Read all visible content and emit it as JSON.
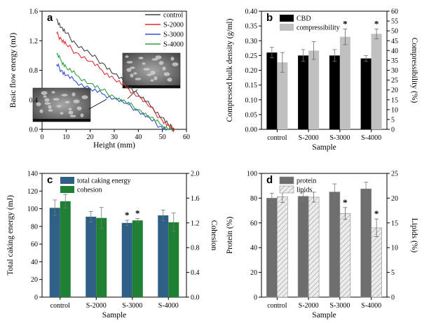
{
  "chart_data": [
    {
      "panel_label": "a",
      "type": "line",
      "xlabel": "Height (mm)",
      "ylabel": "Basic flow energy (mJ)",
      "xlim": [
        0,
        60
      ],
      "ylim": [
        0,
        1.6
      ],
      "xticks": [
        "0",
        "10",
        "20",
        "30",
        "40",
        "50",
        "60"
      ],
      "yticks": [
        "0.0",
        "0.4",
        "0.8",
        "1.2",
        "1.6"
      ],
      "colors": [
        "#404040",
        "#e03030",
        "#3050d0",
        "#30a040"
      ],
      "series": [
        {
          "name": "control",
          "x": [
            6,
            8,
            10,
            14,
            20,
            25,
            30,
            35,
            40,
            45,
            50,
            53,
            55
          ],
          "y": [
            1.5,
            1.38,
            1.3,
            1.16,
            1.02,
            0.9,
            0.75,
            0.62,
            0.47,
            0.32,
            0.16,
            0.04,
            0.0
          ]
        },
        {
          "name": "S-2000",
          "x": [
            6,
            8,
            10,
            14,
            20,
            25,
            30,
            35,
            40,
            45,
            50,
            53,
            55
          ],
          "y": [
            1.3,
            1.22,
            1.15,
            1.04,
            0.92,
            0.8,
            0.68,
            0.57,
            0.45,
            0.3,
            0.12,
            0.03,
            0.0
          ]
        },
        {
          "name": "S-3000",
          "x": [
            6,
            8,
            10,
            14,
            20,
            25,
            30,
            35,
            40,
            45,
            49,
            52
          ],
          "y": [
            0.88,
            0.8,
            0.73,
            0.65,
            0.55,
            0.48,
            0.42,
            0.35,
            0.25,
            0.14,
            0.04,
            0.0
          ]
        },
        {
          "name": "S-4000",
          "x": [
            6,
            8,
            10,
            14,
            20,
            25,
            30,
            35,
            40,
            45,
            50,
            54
          ],
          "y": [
            1.02,
            0.93,
            0.84,
            0.74,
            0.62,
            0.53,
            0.44,
            0.36,
            0.27,
            0.16,
            0.05,
            0.0
          ]
        }
      ]
    },
    {
      "panel_label": "b",
      "type": "bar",
      "categories": [
        "control",
        "S-2000",
        "S-3000",
        "S-4000"
      ],
      "xlabel": "Sample",
      "ylabel": "Compressed bulk density (g/ml)",
      "ylabel_right": "Compressibility (%)",
      "ylim": [
        0,
        0.4
      ],
      "ylim_right": [
        0,
        60
      ],
      "yticks": [
        "0.00",
        "0.05",
        "0.10",
        "0.15",
        "0.20",
        "0.25",
        "0.30",
        "0.35",
        "0.40"
      ],
      "yticks_right": [
        "0",
        "5",
        "10",
        "15",
        "20",
        "25",
        "30",
        "35",
        "40",
        "45",
        "50",
        "55",
        "60"
      ],
      "colors": [
        "#000000",
        "#c0c0c0"
      ],
      "series": [
        {
          "name": "CBD",
          "axis": "left",
          "values": [
            0.26,
            0.25,
            0.25,
            0.24
          ],
          "errors": [
            0.018,
            0.02,
            0.02,
            0.01
          ],
          "marks": [
            "",
            "",
            "",
            ""
          ]
        },
        {
          "name": "compressibility",
          "axis": "right",
          "values": [
            34,
            40,
            47,
            48.5
          ],
          "errors": [
            5,
            4.5,
            4,
            2.5
          ],
          "marks": [
            "",
            "",
            "*",
            "*"
          ]
        }
      ]
    },
    {
      "panel_label": "c",
      "type": "bar",
      "categories": [
        "control",
        "S-2000",
        "S-3000",
        "S-4000"
      ],
      "xlabel": "Sample",
      "ylabel": "Total caking energy (mJ)",
      "ylabel_right": "Cohesion",
      "ylim": [
        0,
        140
      ],
      "ylim_right": [
        0,
        2.0
      ],
      "yticks": [
        "0",
        "20",
        "40",
        "60",
        "80",
        "100",
        "120",
        "140"
      ],
      "yticks_right": [
        "0.0",
        "0.4",
        "0.8",
        "1.2",
        "1.6",
        "2.0"
      ],
      "colors": [
        "#2e5f84",
        "#1f7f32"
      ],
      "series": [
        {
          "name": "total caking energy",
          "axis": "left",
          "values": [
            101,
            91,
            84,
            92.5
          ],
          "errors": [
            9,
            6,
            3,
            6
          ],
          "marks": [
            "",
            "",
            "*",
            ""
          ]
        },
        {
          "name": "cohesion",
          "axis": "right",
          "values": [
            1.55,
            1.28,
            1.24,
            1.21
          ],
          "errors": [
            0.11,
            0.17,
            0.03,
            0.15
          ],
          "marks": [
            "",
            "",
            "*",
            ""
          ]
        }
      ]
    },
    {
      "panel_label": "d",
      "type": "bar",
      "categories": [
        "control",
        "S-2000",
        "S-3000",
        "S-4000"
      ],
      "xlabel": "Sample",
      "ylabel": "Protein (%)",
      "ylabel_right": "Lipids (%)",
      "ylim": [
        0,
        100
      ],
      "ylim_right": [
        0,
        25
      ],
      "yticks": [
        "0",
        "20",
        "40",
        "60",
        "80",
        "100"
      ],
      "yticks_right": [
        "0",
        "5",
        "10",
        "15",
        "20",
        "25"
      ],
      "colors": [
        "#6e6e6e",
        "#e4e4e4"
      ],
      "series": [
        {
          "name": "protein",
          "axis": "left",
          "values": [
            80,
            81.5,
            85,
            87.5
          ],
          "errors": [
            4,
            3.5,
            6.5,
            5.5
          ],
          "marks": [
            "",
            "",
            "",
            ""
          ]
        },
        {
          "name": "lipids",
          "axis": "right",
          "values": [
            20.3,
            20.2,
            16.9,
            14.0
          ],
          "errors": [
            1.2,
            1.0,
            1.2,
            1.8
          ],
          "marks": [
            "",
            "",
            "*",
            "*"
          ]
        }
      ]
    }
  ]
}
